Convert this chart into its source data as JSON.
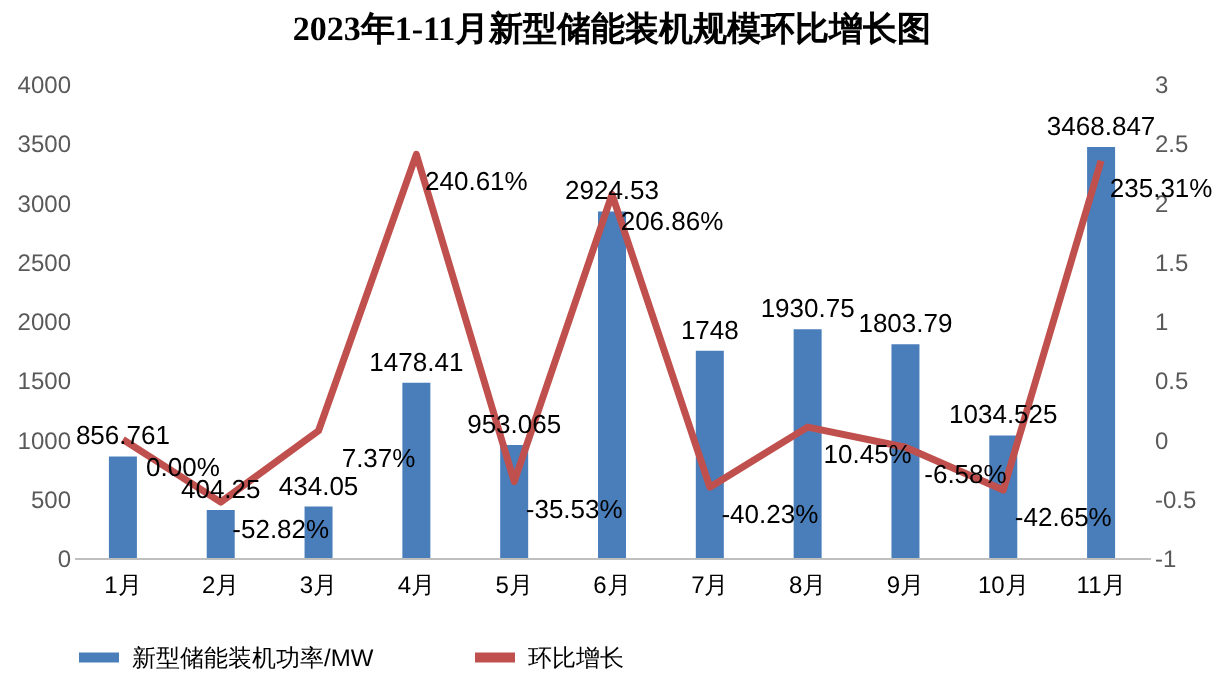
{
  "chart_data": {
    "type": "bar",
    "title": "2023年1-11月新型储能装机规模环比增长图",
    "categories": [
      "1月",
      "2月",
      "3月",
      "4月",
      "5月",
      "6月",
      "7月",
      "8月",
      "9月",
      "10月",
      "11月"
    ],
    "series": [
      {
        "name": "新型储能装机功率/MW",
        "color": "#4a7ebb",
        "values": [
          856.761,
          404.25,
          434.05,
          1478.41,
          953.065,
          2924.53,
          1748,
          1930.75,
          1803.79,
          1034.525,
          3468.847
        ],
        "value_labels": [
          "856.761",
          "404.25",
          "434.05",
          "1478.41",
          "953.065",
          "2924.53",
          "1748",
          "1930.75",
          "1803.79",
          "1034.525",
          "3468.847"
        ]
      },
      {
        "name": "环比增长",
        "type": "line",
        "axis": "y2",
        "color": "#c0504d",
        "values": [
          0,
          -0.5282,
          0.0737,
          2.4061,
          -0.3553,
          2.0686,
          -0.4023,
          0.1045,
          -0.0658,
          -0.4265,
          2.3531
        ],
        "value_labels": [
          "0.00%",
          "-52.82%",
          "7.37%",
          "240.61%",
          "-35.53%",
          "206.86%",
          "-40.23%",
          "10.45%",
          "-6.58%",
          "-42.65%",
          "235.31%"
        ]
      }
    ],
    "ylim": [
      0,
      4000
    ],
    "yticks": [
      0,
      500,
      1000,
      1500,
      2000,
      2500,
      3000,
      3500,
      4000
    ],
    "y2lim": [
      -1,
      3
    ],
    "y2ticks": [
      -1,
      -0.5,
      0,
      0.5,
      1,
      1.5,
      2,
      2.5,
      3
    ],
    "legend": "bottom",
    "grid": false,
    "marker": "none",
    "line_style": "solid"
  }
}
